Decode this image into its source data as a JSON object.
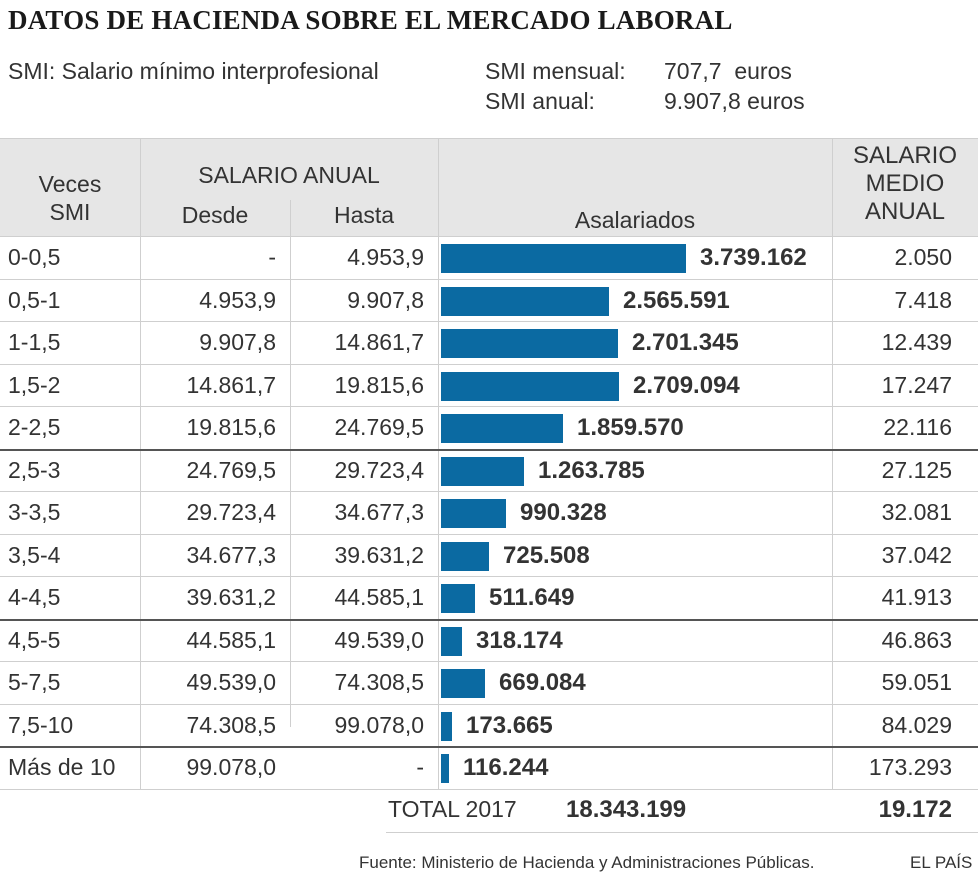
{
  "title": "DATOS DE HACIENDA SOBRE EL MERCADO LABORAL",
  "smi": {
    "legend": "SMI: Salario mínimo interprofesional",
    "monthly_label": "SMI mensual:",
    "monthly_value": "707,7  euros",
    "annual_label": "SMI anual:",
    "annual_value": "9.907,8 euros"
  },
  "headers": {
    "veces_smi": "Veces SMI",
    "salario_anual": "SALARIO ANUAL",
    "desde": "Desde",
    "hasta": "Hasta",
    "asalariados": "Asalariados",
    "salario_medio": "SALARIO MEDIO ANUAL"
  },
  "rows": [
    {
      "veces": "0-0,5",
      "desde": "-",
      "hasta": "4.953,9",
      "asalariados": "3.739.162",
      "medio": "2.050"
    },
    {
      "veces": "0,5-1",
      "desde": "4.953,9",
      "hasta": "9.907,8",
      "asalariados": "2.565.591",
      "medio": "7.418"
    },
    {
      "veces": "1-1,5",
      "desde": "9.907,8",
      "hasta": "14.861,7",
      "asalariados": "2.701.345",
      "medio": "12.439"
    },
    {
      "veces": "1,5-2",
      "desde": "14.861,7",
      "hasta": "19.815,6",
      "asalariados": "2.709.094",
      "medio": "17.247"
    },
    {
      "veces": "2-2,5",
      "desde": "19.815,6",
      "hasta": "24.769,5",
      "asalariados": "1.859.570",
      "medio": "22.116"
    },
    {
      "veces": "2,5-3",
      "desde": "24.769,5",
      "hasta": "29.723,4",
      "asalariados": "1.263.785",
      "medio": "27.125"
    },
    {
      "veces": "3-3,5",
      "desde": "29.723,4",
      "hasta": "34.677,3",
      "asalariados": "990.328",
      "medio": "32.081"
    },
    {
      "veces": "3,5-4",
      "desde": "34.677,3",
      "hasta": "39.631,2",
      "asalariados": "725.508",
      "medio": "37.042"
    },
    {
      "veces": "4-4,5",
      "desde": "39.631,2",
      "hasta": "44.585,1",
      "asalariados": "511.649",
      "medio": "41.913"
    },
    {
      "veces": "4,5-5",
      "desde": "44.585,1",
      "hasta": "49.539,0",
      "asalariados": "318.174",
      "medio": "46.863"
    },
    {
      "veces": "5-7,5",
      "desde": "49.539,0",
      "hasta": "74.308,5",
      "asalariados": "669.084",
      "medio": "59.051"
    },
    {
      "veces": "7,5-10",
      "desde": "74.308,5",
      "hasta": "99.078,0",
      "asalariados": "173.665",
      "medio": "84.029"
    },
    {
      "veces": "Más de 10",
      "desde": "99.078,0",
      "hasta": "-",
      "asalariados": "116.244",
      "medio": "173.293"
    }
  ],
  "total": {
    "label": "TOTAL 2017",
    "asalariados": "18.343.199",
    "medio": "19.172"
  },
  "footer": {
    "source": "Fuente: Ministerio de Hacienda y Administraciones Públicas.",
    "brand": "EL PAÍS"
  },
  "colors": {
    "bar": "#0b6aa2",
    "header_bg": "#e6e6e6"
  },
  "chart_data": {
    "type": "bar",
    "orientation": "horizontal",
    "title": "DATOS DE HACIENDA SOBRE EL MERCADO LABORAL",
    "xlabel": "Asalariados",
    "ylabel": "Veces SMI",
    "categories": [
      "0-0,5",
      "0,5-1",
      "1-1,5",
      "1,5-2",
      "2-2,5",
      "2,5-3",
      "3-3,5",
      "3,5-4",
      "4-4,5",
      "4,5-5",
      "5-7,5",
      "7,5-10",
      "Más de 10"
    ],
    "values": [
      3739162,
      2565591,
      2701345,
      2709094,
      1859570,
      1263785,
      990328,
      725508,
      511649,
      318174,
      669084,
      173665,
      116244
    ],
    "xlim": [
      0,
      3739162
    ]
  }
}
